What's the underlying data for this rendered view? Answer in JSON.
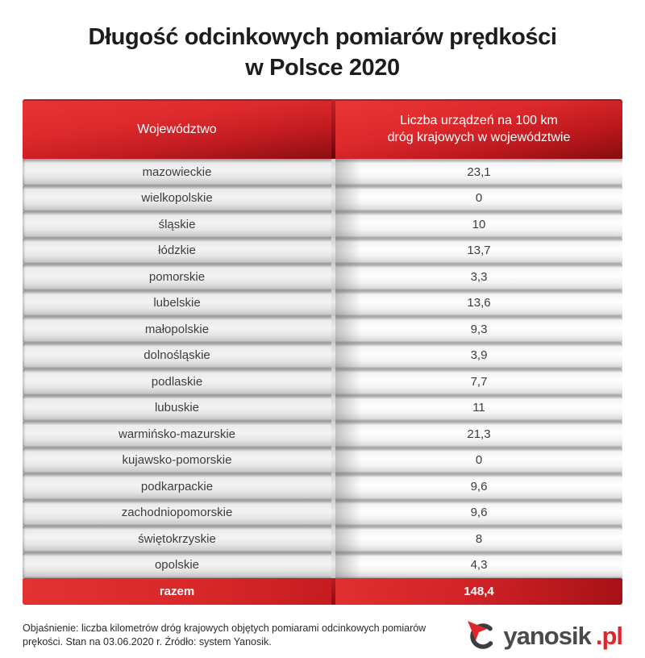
{
  "page": {
    "title_line1": "Długość odcinkowych pomiarów prędkości",
    "title_line2": "w Polsce 2020"
  },
  "table": {
    "header": {
      "col1": "Województwo",
      "col2_line1": "Liczba urządzeń na 100 km",
      "col2_line2": "dróg krajowych w województwie"
    },
    "rows": [
      {
        "name": "mazowieckie",
        "value": "23,1"
      },
      {
        "name": "wielkopolskie",
        "value": "0"
      },
      {
        "name": "śląskie",
        "value": "10"
      },
      {
        "name": "łódzkie",
        "value": "13,7"
      },
      {
        "name": "pomorskie",
        "value": "3,3"
      },
      {
        "name": "lubelskie",
        "value": "13,6"
      },
      {
        "name": "małopolskie",
        "value": "9,3"
      },
      {
        "name": "dolnośląskie",
        "value": "3,9"
      },
      {
        "name": "podlaskie",
        "value": "7,7"
      },
      {
        "name": "lubuskie",
        "value": "11"
      },
      {
        "name": "warmińsko-mazurskie",
        "value": "21,3"
      },
      {
        "name": "kujawsko-pomorskie",
        "value": "0"
      },
      {
        "name": "podkarpackie",
        "value": "9,6"
      },
      {
        "name": "zachodniopomorskie",
        "value": "9,6"
      },
      {
        "name": "świętokrzyskie",
        "value": "8"
      },
      {
        "name": "opolskie",
        "value": "4,3"
      }
    ],
    "total": {
      "label": "razem",
      "value": "148,4"
    }
  },
  "footer": {
    "note": "Objaśnienie: liczba kilometrów dróg krajowych objętych pomiarami odcinkowych pomiarów prękości. Stan na 03.06.2020 r. Źródło: system Yanosik.",
    "logo_text": "yanosik",
    "logo_suffix": ".pl"
  },
  "colors": {
    "header_red_top": "#e93434",
    "header_red_bottom": "#8c0d12",
    "total_red": "#d22327",
    "logo_gray": "#4a4a4a",
    "logo_red": "#e0262a",
    "row_gray": "#ededed",
    "text_dark": "#1d1d1d"
  },
  "chart_data": {
    "type": "table",
    "title": "Długość odcinkowych pomiarów prędkości w Polsce 2020",
    "columns": [
      "Województwo",
      "Liczba urządzeń na 100 km dróg krajowych w województwie"
    ],
    "rows": [
      [
        "mazowieckie",
        23.1
      ],
      [
        "wielkopolskie",
        0
      ],
      [
        "śląskie",
        10
      ],
      [
        "łódzkie",
        13.7
      ],
      [
        "pomorskie",
        3.3
      ],
      [
        "lubelskie",
        13.6
      ],
      [
        "małopolskie",
        9.3
      ],
      [
        "dolnośląskie",
        3.9
      ],
      [
        "podlaskie",
        7.7
      ],
      [
        "lubuskie",
        11
      ],
      [
        "warmińsko-mazurskie",
        21.3
      ],
      [
        "kujawsko-pomorskie",
        0
      ],
      [
        "podkarpackie",
        9.6
      ],
      [
        "zachodniopomorskie",
        9.6
      ],
      [
        "świętokrzyskie",
        8
      ],
      [
        "opolskie",
        4.3
      ]
    ],
    "total": [
      "razem",
      148.4
    ],
    "source_note": "Objaśnienie: liczba kilometrów dróg krajowych objętych pomiarami odcinkowych pomiarów prękości. Stan na 03.06.2020 r. Źródło: system Yanosik."
  }
}
